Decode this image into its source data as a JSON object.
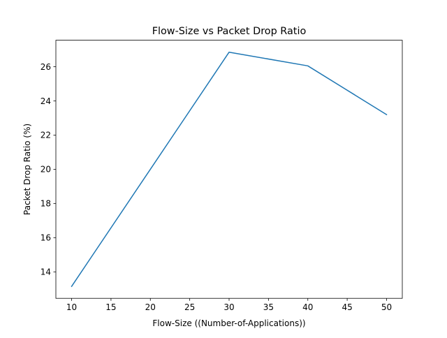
{
  "chart_data": {
    "type": "line",
    "title": "Flow-Size vs Packet Drop Ratio",
    "xlabel": "Flow-Size ((Number-of-Applications))",
    "ylabel": "Packet Drop Ratio (%)",
    "x": [
      10,
      20,
      30,
      40,
      50
    ],
    "series": [
      {
        "values": [
          13.15,
          20.0,
          26.85,
          26.05,
          23.2
        ]
      }
    ],
    "xlim": [
      8,
      52
    ],
    "ylim": [
      12.45,
      27.55
    ],
    "xticks": [
      10,
      15,
      20,
      25,
      30,
      35,
      40,
      45,
      50
    ],
    "yticks": [
      14,
      16,
      18,
      20,
      22,
      24,
      26
    ],
    "grid": false,
    "line_color": "#1f77b4"
  }
}
